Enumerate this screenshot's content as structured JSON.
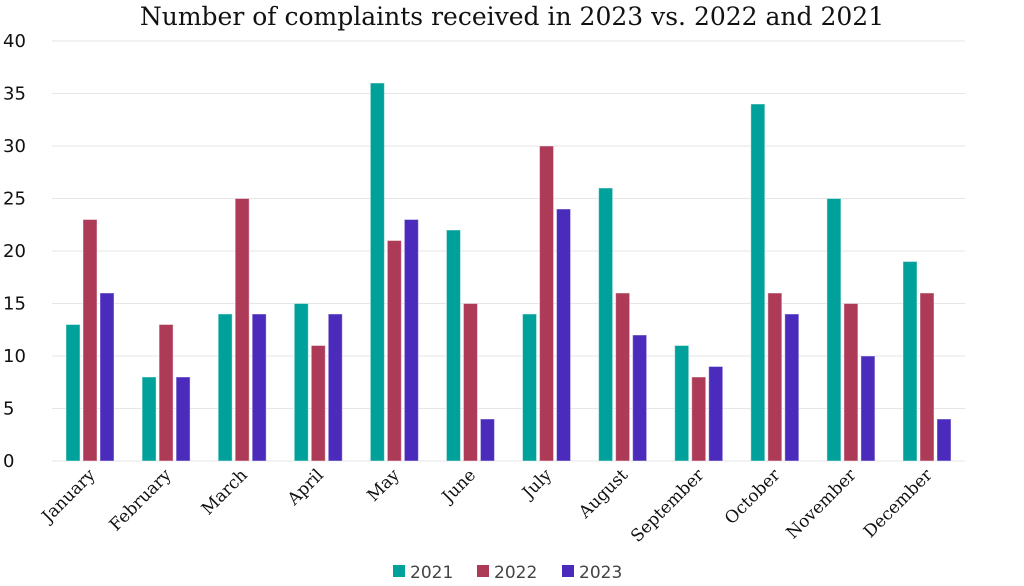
{
  "chart_data": {
    "type": "bar",
    "title": "Number of complaints received in 2023 vs. 2022 and 2021",
    "xlabel": "",
    "ylabel": "",
    "ylim": [
      0,
      40
    ],
    "yticks": [
      0,
      5,
      10,
      15,
      20,
      25,
      30,
      35,
      40
    ],
    "grid": true,
    "legend": "bottom",
    "categories": [
      "January",
      "February",
      "March",
      "April",
      "May",
      "June",
      "July",
      "August",
      "September",
      "October",
      "November",
      "December"
    ],
    "series": [
      {
        "name": "2021",
        "color": "#00a19a",
        "values": [
          13,
          8,
          14,
          15,
          36,
          22,
          14,
          26,
          11,
          34,
          25,
          19
        ]
      },
      {
        "name": "2022",
        "color": "#ad3b58",
        "values": [
          23,
          13,
          25,
          11,
          21,
          15,
          30,
          16,
          8,
          16,
          15,
          16
        ]
      },
      {
        "name": "2023",
        "color": "#4a2bbb",
        "values": [
          16,
          8,
          14,
          14,
          23,
          4,
          24,
          12,
          9,
          14,
          10,
          4
        ]
      }
    ]
  }
}
